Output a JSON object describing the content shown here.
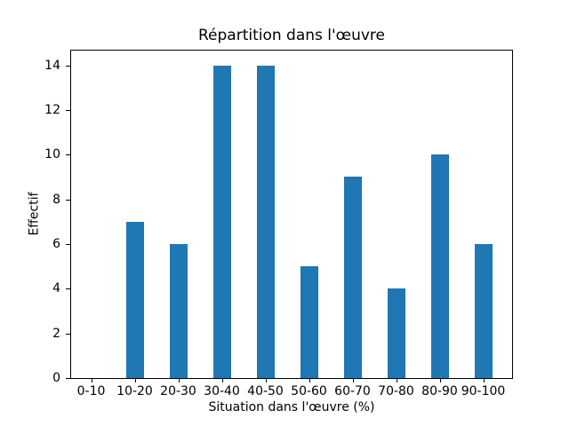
{
  "chart_data": {
    "type": "bar",
    "title": "Répartition dans l'œuvre",
    "xlabel": "Situation dans l'œuvre (%)",
    "ylabel": "Effectif",
    "categories": [
      "0-10",
      "10-20",
      "20-30",
      "30-40",
      "40-50",
      "50-60",
      "60-70",
      "70-80",
      "80-90",
      "90-100"
    ],
    "values": [
      0,
      7,
      6,
      14,
      14,
      5,
      9,
      4,
      10,
      6
    ],
    "yticks": [
      0,
      2,
      4,
      6,
      8,
      10,
      12,
      14
    ],
    "ylim": [
      0,
      14.7
    ],
    "bar_color": "#1f77b4",
    "spine_color": "#000000",
    "grid": "off",
    "legend": "none"
  }
}
